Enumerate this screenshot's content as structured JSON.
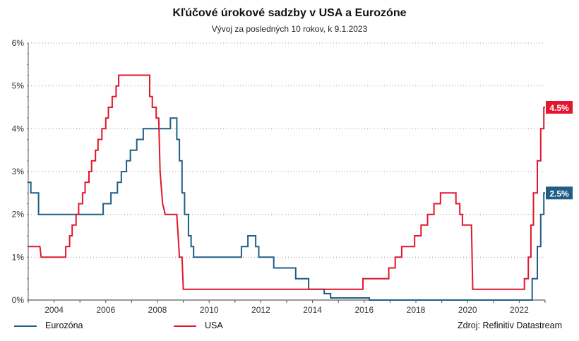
{
  "chart_data": {
    "type": "line",
    "title": "Kľúčové úrokové sadzby v USA a Eurozóne",
    "subtitle": "Vývoj za posledných 10 rokov, k 9.1.2023",
    "source": "Zdroj: Refinitiv Datastream",
    "xlim": [
      2003.0,
      2023.0
    ],
    "ylim": [
      0,
      6
    ],
    "x_ticks": [
      2004,
      2006,
      2008,
      2010,
      2012,
      2014,
      2016,
      2018,
      2020,
      2022
    ],
    "y_ticks": [
      0,
      1,
      2,
      3,
      4,
      5,
      6
    ],
    "y_tick_labels": [
      "0%",
      "1%",
      "2%",
      "3%",
      "4%",
      "5%",
      "6%"
    ],
    "grid": "horizontal-dotted",
    "legend_placement": "bottom-left",
    "series": [
      {
        "name": "Eurozóna",
        "color": "#1f5f86",
        "end_label": "2.5%",
        "points": [
          [
            2003.0,
            2.75
          ],
          [
            2003.1,
            2.75
          ],
          [
            2003.1,
            2.5
          ],
          [
            2003.4,
            2.5
          ],
          [
            2003.4,
            2.0
          ],
          [
            2005.9,
            2.0
          ],
          [
            2005.9,
            2.25
          ],
          [
            2006.2,
            2.25
          ],
          [
            2006.2,
            2.5
          ],
          [
            2006.45,
            2.5
          ],
          [
            2006.45,
            2.75
          ],
          [
            2006.6,
            2.75
          ],
          [
            2006.6,
            3.0
          ],
          [
            2006.8,
            3.0
          ],
          [
            2006.8,
            3.25
          ],
          [
            2006.95,
            3.25
          ],
          [
            2006.95,
            3.5
          ],
          [
            2007.2,
            3.5
          ],
          [
            2007.2,
            3.75
          ],
          [
            2007.45,
            3.75
          ],
          [
            2007.45,
            4.0
          ],
          [
            2008.5,
            4.0
          ],
          [
            2008.5,
            4.25
          ],
          [
            2008.75,
            4.25
          ],
          [
            2008.75,
            3.75
          ],
          [
            2008.85,
            3.75
          ],
          [
            2008.85,
            3.25
          ],
          [
            2008.95,
            3.25
          ],
          [
            2008.95,
            2.5
          ],
          [
            2009.05,
            2.5
          ],
          [
            2009.05,
            2.0
          ],
          [
            2009.2,
            2.0
          ],
          [
            2009.2,
            1.5
          ],
          [
            2009.3,
            1.5
          ],
          [
            2009.3,
            1.25
          ],
          [
            2009.4,
            1.25
          ],
          [
            2009.4,
            1.0
          ],
          [
            2011.25,
            1.0
          ],
          [
            2011.25,
            1.25
          ],
          [
            2011.5,
            1.25
          ],
          [
            2011.5,
            1.5
          ],
          [
            2011.8,
            1.5
          ],
          [
            2011.8,
            1.25
          ],
          [
            2011.92,
            1.25
          ],
          [
            2011.92,
            1.0
          ],
          [
            2012.5,
            1.0
          ],
          [
            2012.5,
            0.75
          ],
          [
            2013.35,
            0.75
          ],
          [
            2013.35,
            0.5
          ],
          [
            2013.85,
            0.5
          ],
          [
            2013.85,
            0.25
          ],
          [
            2014.45,
            0.25
          ],
          [
            2014.45,
            0.15
          ],
          [
            2014.7,
            0.15
          ],
          [
            2014.7,
            0.05
          ],
          [
            2016.2,
            0.05
          ],
          [
            2016.2,
            0.0
          ],
          [
            2022.5,
            0.0
          ],
          [
            2022.5,
            0.5
          ],
          [
            2022.7,
            0.5
          ],
          [
            2022.7,
            1.25
          ],
          [
            2022.83,
            1.25
          ],
          [
            2022.83,
            2.0
          ],
          [
            2022.95,
            2.0
          ],
          [
            2022.95,
            2.5
          ],
          [
            2023.0,
            2.5
          ]
        ]
      },
      {
        "name": "USA",
        "color": "#e2162c",
        "end_label": "4.5%",
        "points": [
          [
            2003.0,
            1.25
          ],
          [
            2003.45,
            1.25
          ],
          [
            2003.5,
            1.0
          ],
          [
            2004.45,
            1.0
          ],
          [
            2004.45,
            1.25
          ],
          [
            2004.6,
            1.25
          ],
          [
            2004.6,
            1.5
          ],
          [
            2004.7,
            1.5
          ],
          [
            2004.7,
            1.75
          ],
          [
            2004.85,
            1.75
          ],
          [
            2004.85,
            2.0
          ],
          [
            2004.95,
            2.0
          ],
          [
            2004.95,
            2.25
          ],
          [
            2005.1,
            2.25
          ],
          [
            2005.1,
            2.5
          ],
          [
            2005.2,
            2.5
          ],
          [
            2005.2,
            2.75
          ],
          [
            2005.35,
            2.75
          ],
          [
            2005.35,
            3.0
          ],
          [
            2005.45,
            3.0
          ],
          [
            2005.45,
            3.25
          ],
          [
            2005.6,
            3.25
          ],
          [
            2005.6,
            3.5
          ],
          [
            2005.7,
            3.5
          ],
          [
            2005.7,
            3.75
          ],
          [
            2005.85,
            3.75
          ],
          [
            2005.85,
            4.0
          ],
          [
            2006.0,
            4.0
          ],
          [
            2006.0,
            4.25
          ],
          [
            2006.1,
            4.25
          ],
          [
            2006.1,
            4.5
          ],
          [
            2006.25,
            4.5
          ],
          [
            2006.25,
            4.75
          ],
          [
            2006.4,
            4.75
          ],
          [
            2006.4,
            5.0
          ],
          [
            2006.5,
            5.0
          ],
          [
            2006.5,
            5.25
          ],
          [
            2007.7,
            5.25
          ],
          [
            2007.7,
            4.75
          ],
          [
            2007.8,
            4.75
          ],
          [
            2007.8,
            4.5
          ],
          [
            2007.95,
            4.5
          ],
          [
            2007.95,
            4.25
          ],
          [
            2008.05,
            4.25
          ],
          [
            2008.1,
            3.0
          ],
          [
            2008.2,
            2.25
          ],
          [
            2008.3,
            2.0
          ],
          [
            2008.75,
            2.0
          ],
          [
            2008.8,
            1.5
          ],
          [
            2008.85,
            1.0
          ],
          [
            2008.95,
            1.0
          ],
          [
            2009.0,
            0.25
          ],
          [
            2015.95,
            0.25
          ],
          [
            2015.95,
            0.5
          ],
          [
            2016.95,
            0.5
          ],
          [
            2016.95,
            0.75
          ],
          [
            2017.2,
            0.75
          ],
          [
            2017.2,
            1.0
          ],
          [
            2017.45,
            1.0
          ],
          [
            2017.45,
            1.25
          ],
          [
            2017.95,
            1.25
          ],
          [
            2017.95,
            1.5
          ],
          [
            2018.2,
            1.5
          ],
          [
            2018.2,
            1.75
          ],
          [
            2018.45,
            1.75
          ],
          [
            2018.45,
            2.0
          ],
          [
            2018.7,
            2.0
          ],
          [
            2018.7,
            2.25
          ],
          [
            2018.95,
            2.25
          ],
          [
            2018.95,
            2.5
          ],
          [
            2019.55,
            2.5
          ],
          [
            2019.55,
            2.25
          ],
          [
            2019.7,
            2.25
          ],
          [
            2019.7,
            2.0
          ],
          [
            2019.8,
            2.0
          ],
          [
            2019.8,
            1.75
          ],
          [
            2020.15,
            1.75
          ],
          [
            2020.2,
            0.25
          ],
          [
            2022.2,
            0.25
          ],
          [
            2022.2,
            0.5
          ],
          [
            2022.35,
            0.5
          ],
          [
            2022.35,
            1.0
          ],
          [
            2022.45,
            1.0
          ],
          [
            2022.45,
            1.75
          ],
          [
            2022.55,
            1.75
          ],
          [
            2022.55,
            2.5
          ],
          [
            2022.7,
            2.5
          ],
          [
            2022.7,
            3.25
          ],
          [
            2022.83,
            3.25
          ],
          [
            2022.83,
            4.0
          ],
          [
            2022.95,
            4.0
          ],
          [
            2022.95,
            4.5
          ],
          [
            2023.0,
            4.5
          ]
        ]
      }
    ]
  }
}
